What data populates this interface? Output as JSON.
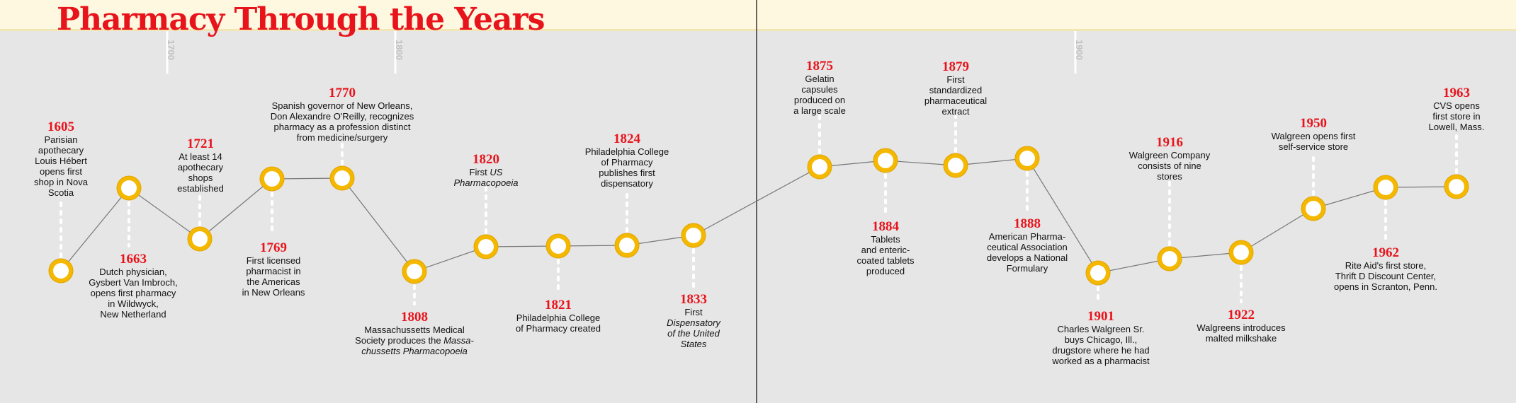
{
  "title": "Pharmacy Through the Years",
  "centuries": [
    {
      "label": "1700"
    },
    {
      "label": "1800"
    },
    {
      "label": "1900"
    }
  ],
  "colors": {
    "accent": "#e8141c",
    "marker": "#f5b800",
    "band": "#fff8e0",
    "background": "#e6e6e6"
  },
  "events": [
    {
      "year": "1605",
      "lines": [
        [
          "Parisian"
        ],
        [
          "apothecary"
        ],
        [
          "Louis Hébert"
        ],
        [
          "opens first"
        ],
        [
          "shop in Nova"
        ],
        [
          "Scotia"
        ]
      ]
    },
    {
      "year": "1663",
      "lines": [
        [
          "Dutch physician,"
        ],
        [
          "Gysbert Van Imbroch,"
        ],
        [
          "opens first pharmacy"
        ],
        [
          "in Wildwyck,"
        ],
        [
          "New Netherland"
        ]
      ]
    },
    {
      "year": "1721",
      "lines": [
        [
          "At least 14"
        ],
        [
          "apothecary"
        ],
        [
          "shops"
        ],
        [
          "established"
        ]
      ]
    },
    {
      "year": "1769",
      "lines": [
        [
          "First licensed"
        ],
        [
          "pharmacist in"
        ],
        [
          "the Americas"
        ],
        [
          "in New Orleans"
        ]
      ]
    },
    {
      "year": "1770",
      "lines": [
        [
          "Spanish governor of New Orleans,"
        ],
        [
          "Don Alexandre O'Reilly, recognizes"
        ],
        [
          "pharmacy as a profession distinct"
        ],
        [
          "from medicine/surgery"
        ]
      ]
    },
    {
      "year": "1808",
      "lines": [
        [
          "Massachussetts Medical"
        ],
        [
          "Society produces the ",
          "Massa-"
        ],
        [
          "",
          "chussetts Pharmacopoeia"
        ]
      ]
    },
    {
      "year": "1820",
      "lines": [
        [
          "First ",
          "US"
        ],
        [
          "",
          "Pharmacopoeia"
        ]
      ]
    },
    {
      "year": "1821",
      "lines": [
        [
          "Philadelphia College"
        ],
        [
          "of Pharmacy created"
        ]
      ]
    },
    {
      "year": "1824",
      "lines": [
        [
          "Philadelphia College"
        ],
        [
          "of Pharmacy"
        ],
        [
          "publishes first"
        ],
        [
          "dispensatory"
        ]
      ]
    },
    {
      "year": "1833",
      "lines": [
        [
          "First"
        ],
        [
          "",
          "Dispensatory"
        ],
        [
          "",
          "of the United"
        ],
        [
          "",
          "States"
        ]
      ]
    },
    {
      "year": "1875",
      "lines": [
        [
          "Gelatin"
        ],
        [
          "capsules"
        ],
        [
          "produced on"
        ],
        [
          "a large scale"
        ]
      ]
    },
    {
      "year": "1884",
      "lines": [
        [
          "Tablets"
        ],
        [
          "and enteric-"
        ],
        [
          "coated tablets"
        ],
        [
          "produced"
        ]
      ]
    },
    {
      "year": "1879",
      "lines": [
        [
          "First"
        ],
        [
          "standardized"
        ],
        [
          "pharmaceutical"
        ],
        [
          "extract"
        ]
      ]
    },
    {
      "year": "1888",
      "lines": [
        [
          "American Pharma-"
        ],
        [
          "ceutical Association"
        ],
        [
          "develops a National"
        ],
        [
          "Formulary"
        ]
      ]
    },
    {
      "year": "1901",
      "lines": [
        [
          "Charles Walgreen Sr."
        ],
        [
          "buys Chicago, Ill.,"
        ],
        [
          "drugstore where he had"
        ],
        [
          "worked as a pharmacist"
        ]
      ]
    },
    {
      "year": "1916",
      "lines": [
        [
          "Walgreen Company"
        ],
        [
          "consists of nine"
        ],
        [
          "stores"
        ]
      ]
    },
    {
      "year": "1922",
      "lines": [
        [
          "Walgreens introduces"
        ],
        [
          "malted milkshake"
        ]
      ]
    },
    {
      "year": "1950",
      "lines": [
        [
          "Walgreen opens first"
        ],
        [
          "self-service store"
        ]
      ]
    },
    {
      "year": "1962",
      "lines": [
        [
          "Rite Aid's first store,"
        ],
        [
          "Thrift D Discount Center,"
        ],
        [
          "opens in Scranton, Penn."
        ]
      ]
    },
    {
      "year": "1963",
      "lines": [
        [
          "CVS opens"
        ],
        [
          "first store in"
        ],
        [
          "Lowell, Mass."
        ]
      ]
    }
  ]
}
